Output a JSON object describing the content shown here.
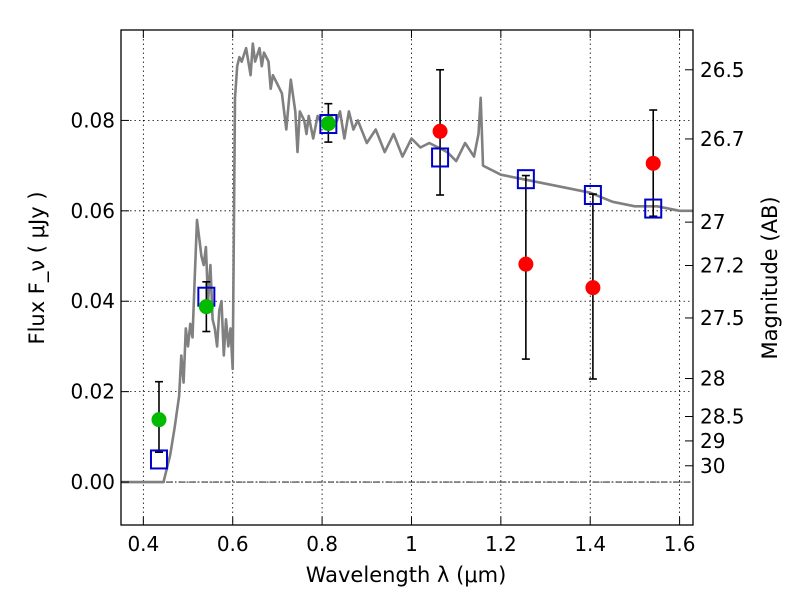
{
  "chart_data": {
    "type": "scatter",
    "xlabel": "Wavelength  λ (μm)",
    "ylabel": "Flux  F_ν  ( μJy )",
    "y2label": "Magnitude (AB)",
    "xlim": [
      0.35,
      1.63
    ],
    "ylim": [
      -0.0095,
      0.1
    ],
    "x_ticks": [
      0.4,
      0.6,
      0.8,
      1.0,
      1.2,
      1.4,
      1.6
    ],
    "x_tick_labels": [
      "0.4",
      "0.6",
      "0.8",
      "1",
      "1.2",
      "1.4",
      "1.6"
    ],
    "y_ticks": [
      0.0,
      0.02,
      0.04,
      0.06,
      0.08
    ],
    "y_tick_labels": [
      "0.00",
      "0.02",
      "0.04",
      "0.06",
      "0.08"
    ],
    "y2_ticks": [
      {
        "label": "26.5",
        "flux": 0.0912
      },
      {
        "label": "26.7",
        "flux": 0.0759
      },
      {
        "label": "27",
        "flux": 0.0575
      },
      {
        "label": "27.2",
        "flux": 0.0479
      },
      {
        "label": "27.5",
        "flux": 0.0363
      },
      {
        "label": "28",
        "flux": 0.0229
      },
      {
        "label": "28.5",
        "flux": 0.0145
      },
      {
        "label": "29",
        "flux": 0.0091
      },
      {
        "label": "30",
        "flux": 0.0036
      }
    ],
    "grid": true,
    "colors": {
      "model_spectrum": "#808080",
      "observed_green": "#00bb00",
      "observed_red": "#ff0000",
      "model_boxes": "#0000cc",
      "error_bars": "#000000"
    },
    "series": [
      {
        "kind": "line",
        "x": [
          0.35,
          0.43,
          0.445,
          0.46,
          0.47,
          0.48,
          0.485,
          0.49,
          0.495,
          0.5,
          0.505,
          0.51,
          0.515,
          0.52,
          0.525,
          0.53,
          0.535,
          0.54,
          0.545,
          0.55,
          0.555,
          0.56,
          0.565,
          0.57,
          0.575,
          0.58,
          0.585,
          0.59,
          0.595,
          0.6,
          0.605,
          0.61,
          0.615,
          0.62,
          0.63,
          0.64,
          0.645,
          0.65,
          0.66,
          0.665,
          0.67,
          0.68,
          0.685,
          0.69,
          0.7,
          0.71,
          0.72,
          0.73,
          0.74,
          0.745,
          0.75,
          0.76,
          0.765,
          0.77,
          0.78,
          0.79,
          0.8,
          0.81,
          0.82,
          0.83,
          0.84,
          0.85,
          0.86,
          0.87,
          0.88,
          0.9,
          0.92,
          0.94,
          0.96,
          0.98,
          1.0,
          1.02,
          1.04,
          1.06,
          1.08,
          1.1,
          1.12,
          1.14,
          1.15,
          1.155,
          1.16,
          1.2,
          1.25,
          1.3,
          1.35,
          1.4,
          1.45,
          1.5,
          1.55,
          1.6,
          1.63
        ],
        "y": [
          0.0,
          0.0,
          0.0,
          0.006,
          0.012,
          0.019,
          0.028,
          0.022,
          0.034,
          0.03,
          0.035,
          0.032,
          0.045,
          0.058,
          0.054,
          0.05,
          0.048,
          0.052,
          0.04,
          0.048,
          0.036,
          0.034,
          0.03,
          0.038,
          0.04,
          0.028,
          0.036,
          0.03,
          0.034,
          0.025,
          0.085,
          0.092,
          0.094,
          0.093,
          0.096,
          0.09,
          0.097,
          0.093,
          0.096,
          0.092,
          0.095,
          0.093,
          0.087,
          0.09,
          0.088,
          0.086,
          0.078,
          0.089,
          0.082,
          0.073,
          0.082,
          0.08,
          0.077,
          0.081,
          0.076,
          0.081,
          0.079,
          0.079,
          0.081,
          0.079,
          0.082,
          0.076,
          0.082,
          0.078,
          0.08,
          0.075,
          0.078,
          0.073,
          0.077,
          0.072,
          0.076,
          0.074,
          0.075,
          0.074,
          0.073,
          0.071,
          0.075,
          0.072,
          0.077,
          0.085,
          0.07,
          0.068,
          0.067,
          0.066,
          0.065,
          0.064,
          0.062,
          0.061,
          0.061,
          0.06,
          0.06
        ]
      },
      {
        "kind": "points",
        "marker": "circle",
        "color": "green",
        "x": [
          0.435,
          0.541,
          0.814
        ],
        "y": [
          0.0138,
          0.0388,
          0.0793
        ],
        "err_low": [
          0.0066,
          0.0333,
          0.0752
        ],
        "err_high": [
          0.0222,
          0.0443,
          0.0837
        ]
      },
      {
        "kind": "points",
        "marker": "circle",
        "color": "red",
        "x": [
          1.064,
          1.256,
          1.406,
          1.541
        ],
        "y": [
          0.0776,
          0.0482,
          0.043,
          0.0705
        ],
        "err_low": [
          0.0635,
          0.0272,
          0.0228,
          0.0588
        ],
        "err_high": [
          0.0912,
          0.0678,
          0.0637,
          0.0823
        ]
      },
      {
        "kind": "points",
        "marker": "square",
        "color": "blue",
        "x": [
          0.435,
          0.541,
          0.814,
          1.064,
          1.256,
          1.406,
          1.541
        ],
        "y": [
          0.005,
          0.041,
          0.0792,
          0.0718,
          0.067,
          0.0635,
          0.0605
        ]
      }
    ]
  }
}
